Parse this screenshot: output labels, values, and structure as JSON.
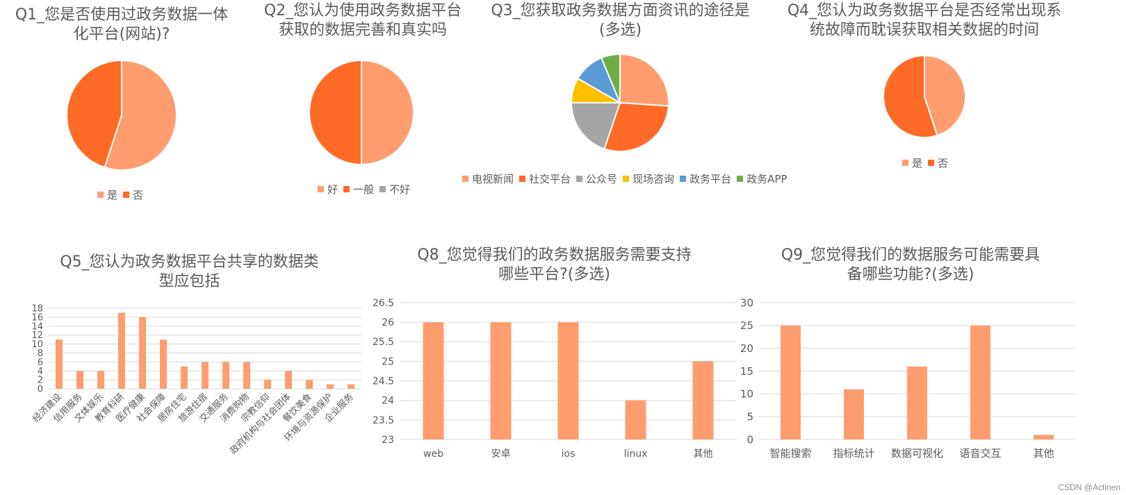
{
  "colors": {
    "light_orange": "#FF9D6E",
    "dark_orange": "#FF6A27",
    "gray": "#A5A5A5",
    "yellow": "#FFC000",
    "blue": "#5B9BD5",
    "green": "#70AD47",
    "grid": "#D9D9D9",
    "text": "#595959"
  },
  "watermark": "CSDN @Actinen",
  "chart_data": [
    {
      "id": "q1",
      "type": "pie",
      "title": "Q1_您是否使用过政务数据一体化平台(网站)?",
      "title_lines": [
        "Q1_您是否使用过政务数据一体",
        "化平台(网站)?"
      ],
      "legend_position": "bottom",
      "slices": [
        {
          "label": "是",
          "value": 55,
          "color": "#FF9D6E"
        },
        {
          "label": "否",
          "value": 45,
          "color": "#FF6A27"
        }
      ]
    },
    {
      "id": "q2",
      "type": "pie",
      "title": "Q2_您认为使用政务数据平台获取的数据完善和真实吗",
      "title_lines": [
        "Q2_您认为使用政务数据平台",
        "获取的数据完善和真实吗"
      ],
      "legend_position": "bottom",
      "slices": [
        {
          "label": "好",
          "value": 50,
          "color": "#FF9D6E"
        },
        {
          "label": "一般",
          "value": 50,
          "color": "#FF6A27"
        },
        {
          "label": "不好",
          "value": 0,
          "color": "#A5A5A5"
        }
      ]
    },
    {
      "id": "q3",
      "type": "pie",
      "title": "Q3_您获取政务数据方面资讯的途径是(多选)",
      "title_lines": [
        "Q3_您获取政务数据方面资讯的途径是",
        "(多选)"
      ],
      "legend_position": "bottom",
      "slices": [
        {
          "label": "电视新闻",
          "value": 25,
          "color": "#FF9D6E"
        },
        {
          "label": "社交平台",
          "value": 28,
          "color": "#FF6A27"
        },
        {
          "label": "公众号",
          "value": 19,
          "color": "#A5A5A5"
        },
        {
          "label": "现场咨询",
          "value": 8,
          "color": "#FFC000"
        },
        {
          "label": "政务平台",
          "value": 10,
          "color": "#5B9BD5"
        },
        {
          "label": "政务APP",
          "value": 6,
          "color": "#70AD47"
        }
      ]
    },
    {
      "id": "q4",
      "type": "pie",
      "title": "Q4_您认为政务数据平台是否经常出现系统故障而耽误获取相关数据的时间",
      "title_lines": [
        "Q4_您认为政务数据平台是否经常出现系",
        "统故障而耽误获取相关数据的时间"
      ],
      "legend_position": "bottom",
      "slices": [
        {
          "label": "是",
          "value": 45,
          "color": "#FF9D6E"
        },
        {
          "label": "否",
          "value": 55,
          "color": "#FF6A27"
        }
      ]
    },
    {
      "id": "q5",
      "type": "bar",
      "title": "Q5_您认为政务数据平台共享的数据类型应包括",
      "title_lines": [
        "Q5_您认为政务数据平台共享的数据类",
        "型应包括"
      ],
      "categories": [
        "经济建设",
        "信用服务",
        "文体娱乐",
        "教育科研",
        "医疗健康",
        "社会保障",
        "居房住宅",
        "旅游住宿",
        "交通服务",
        "消费购物",
        "宗教信仰",
        "政府机构与社会团体",
        "餐饮美食",
        "环境与资源保护",
        "企业服务"
      ],
      "values": [
        11,
        4,
        4,
        17,
        16,
        11,
        5,
        6,
        6,
        6,
        2,
        4,
        2,
        1,
        1
      ],
      "ylim": [
        0,
        18
      ],
      "yticks": [
        0,
        2,
        4,
        6,
        8,
        10,
        12,
        14,
        16,
        18
      ],
      "ytick_labels": [
        "0",
        "2",
        "4",
        "6",
        "8",
        "10",
        "12",
        "14",
        "16",
        "18"
      ],
      "grid": true,
      "xlabel": "",
      "ylabel": ""
    },
    {
      "id": "q8",
      "type": "bar",
      "title": "Q8_您觉得我们的政务数据服务需要支持哪些平台?(多选)",
      "title_lines": [
        "Q8_您觉得我们的政务数据服务需要支持",
        "哪些平台?(多选)"
      ],
      "categories": [
        "web",
        "安卓",
        "ios",
        "linux",
        "其他"
      ],
      "values": [
        26,
        26,
        26,
        24,
        25
      ],
      "ylim": [
        23,
        26.5
      ],
      "yticks": [
        23,
        23.5,
        24,
        24.5,
        25,
        25.5,
        26,
        26.5
      ],
      "ytick_labels": [
        "23",
        "23.5",
        "24",
        "24.5",
        "25",
        "25.5",
        "26",
        "26.5"
      ],
      "grid": true,
      "xlabel": "",
      "ylabel": ""
    },
    {
      "id": "q9",
      "type": "bar",
      "title": "Q9_您觉得我们的数据服务可能需要具备哪些功能?(多选)",
      "title_lines": [
        "Q9_您觉得我们的数据服务可能需要具",
        "备哪些功能?(多选)"
      ],
      "categories": [
        "智能搜索",
        "指标统计",
        "数据可视化",
        "语音交互",
        "其他"
      ],
      "values": [
        25,
        11,
        16,
        25,
        1
      ],
      "ylim": [
        0,
        30
      ],
      "yticks": [
        0,
        5,
        10,
        15,
        20,
        25,
        30
      ],
      "ytick_labels": [
        "0",
        "5",
        "10",
        "15",
        "20",
        "25",
        "30"
      ],
      "grid": true,
      "xlabel": "",
      "ylabel": ""
    }
  ]
}
